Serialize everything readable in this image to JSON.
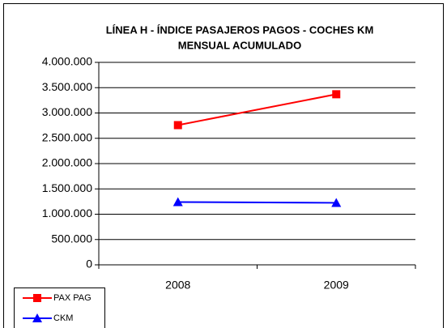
{
  "chart_data": {
    "type": "line",
    "title": [
      "LÍNEA H - ÍNDICE PASAJEROS PAGOS - COCHES KM",
      "MENSUAL ACUMULADO"
    ],
    "categories": [
      "2008",
      "2009"
    ],
    "series": [
      {
        "name": "PAX PAG",
        "color": "#ff0000",
        "marker": "square",
        "values": [
          2760000,
          3370000
        ]
      },
      {
        "name": "CKM",
        "color": "#0000ff",
        "marker": "triangle",
        "values": [
          1240000,
          1225000
        ]
      }
    ],
    "ylim": [
      0,
      4000000
    ],
    "yticks": [
      {
        "value": 0,
        "label": "0"
      },
      {
        "value": 500000,
        "label": "500.000"
      },
      {
        "value": 1000000,
        "label": "1.000.000"
      },
      {
        "value": 1500000,
        "label": "1.500.000"
      },
      {
        "value": 2000000,
        "label": "2.000.000"
      },
      {
        "value": 2500000,
        "label": "2.500.000"
      },
      {
        "value": 3000000,
        "label": "3.000.000"
      },
      {
        "value": 3500000,
        "label": "3.500.000"
      },
      {
        "value": 4000000,
        "label": "4.000.000"
      }
    ],
    "grid": true,
    "legend": "bottom-left"
  }
}
